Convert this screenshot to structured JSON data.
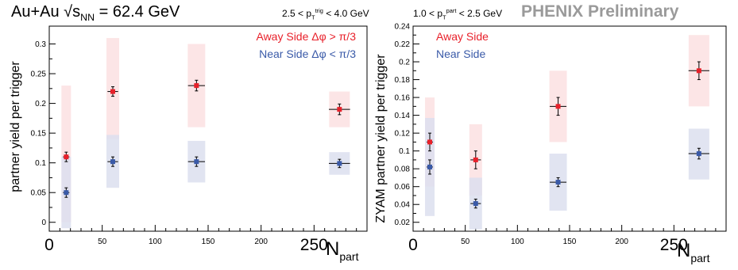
{
  "header": {
    "title": "Au+Au √s_NN = 62.4 GeV",
    "trigger_cut": "2.5 < p_T^trig < 4.0 GeV",
    "partner_cut": "1.0 < p_T^part < 2.5 GeV",
    "preliminary": "PHENIX Preliminary"
  },
  "chart_data": [
    {
      "type": "scatter",
      "xlabel": "N_part",
      "ylabel": "partner yield per trigger",
      "xlim": [
        0,
        300
      ],
      "ylim": [
        -0.015,
        0.33
      ],
      "xticks": [
        0,
        50,
        100,
        150,
        200,
        250
      ],
      "yticks": [
        0,
        0.05,
        0.1,
        0.15,
        0.2,
        0.25,
        0.3
      ],
      "legend_position": "top-right",
      "series": [
        {
          "name": "Away Side  Δφ > π/3",
          "color": "#e8202a",
          "band_color": "#fbe0e2",
          "points": [
            {
              "x": 16,
              "y": 0.11,
              "xerr": 3,
              "yerr": 0.008,
              "sys_low": 0.0,
              "sys_high": 0.23
            },
            {
              "x": 60,
              "y": 0.22,
              "xerr": 5,
              "yerr": 0.008,
              "sys_low": 0.14,
              "sys_high": 0.31
            },
            {
              "x": 139,
              "y": 0.23,
              "xerr": 8,
              "yerr": 0.009,
              "sys_low": 0.16,
              "sys_high": 0.3
            },
            {
              "x": 274,
              "y": 0.19,
              "xerr": 10,
              "yerr": 0.009,
              "sys_low": 0.16,
              "sys_high": 0.22
            }
          ]
        },
        {
          "name": "Near Side  Δφ < π/3",
          "color": "#3a5aa8",
          "band_color": "#dcdfef",
          "points": [
            {
              "x": 16,
              "y": 0.05,
              "xerr": 3,
              "yerr": 0.008,
              "sys_low": -0.01,
              "sys_high": 0.11
            },
            {
              "x": 60,
              "y": 0.102,
              "xerr": 5,
              "yerr": 0.008,
              "sys_low": 0.058,
              "sys_high": 0.147
            },
            {
              "x": 139,
              "y": 0.102,
              "xerr": 8,
              "yerr": 0.008,
              "sys_low": 0.067,
              "sys_high": 0.137
            },
            {
              "x": 274,
              "y": 0.099,
              "xerr": 10,
              "yerr": 0.007,
              "sys_low": 0.08,
              "sys_high": 0.118
            }
          ]
        }
      ]
    },
    {
      "type": "scatter",
      "xlabel": "N_part",
      "ylabel": "ZYAM partner yield per trigger",
      "xlim": [
        0,
        300
      ],
      "ylim": [
        0.01,
        0.24
      ],
      "xticks": [
        0,
        50,
        100,
        150,
        200,
        250
      ],
      "yticks": [
        0.02,
        0.04,
        0.06,
        0.08,
        0.1,
        0.12,
        0.14,
        0.16,
        0.18,
        0.2,
        0.22,
        0.24
      ],
      "legend_position": "top-left",
      "series": [
        {
          "name": "Away Side",
          "color": "#e8202a",
          "band_color": "#fbe0e2",
          "points": [
            {
              "x": 16,
              "y": 0.11,
              "xerr": 3,
              "yerr": 0.01,
              "sys_low": 0.06,
              "sys_high": 0.16
            },
            {
              "x": 60,
              "y": 0.09,
              "xerr": 5,
              "yerr": 0.01,
              "sys_low": 0.05,
              "sys_high": 0.13
            },
            {
              "x": 139,
              "y": 0.15,
              "xerr": 8,
              "yerr": 0.01,
              "sys_low": 0.11,
              "sys_high": 0.19
            },
            {
              "x": 274,
              "y": 0.19,
              "xerr": 10,
              "yerr": 0.01,
              "sys_low": 0.15,
              "sys_high": 0.23
            }
          ]
        },
        {
          "name": "Near Side",
          "color": "#3a5aa8",
          "band_color": "#dcdfef",
          "points": [
            {
              "x": 16,
              "y": 0.082,
              "xerr": 3,
              "yerr": 0.008,
              "sys_low": 0.027,
              "sys_high": 0.137
            },
            {
              "x": 60,
              "y": 0.041,
              "xerr": 5,
              "yerr": 0.005,
              "sys_low": 0.012,
              "sys_high": 0.07
            },
            {
              "x": 139,
              "y": 0.065,
              "xerr": 8,
              "yerr": 0.005,
              "sys_low": 0.033,
              "sys_high": 0.097
            },
            {
              "x": 274,
              "y": 0.097,
              "xerr": 10,
              "yerr": 0.006,
              "sys_low": 0.068,
              "sys_high": 0.125
            }
          ]
        }
      ]
    }
  ]
}
